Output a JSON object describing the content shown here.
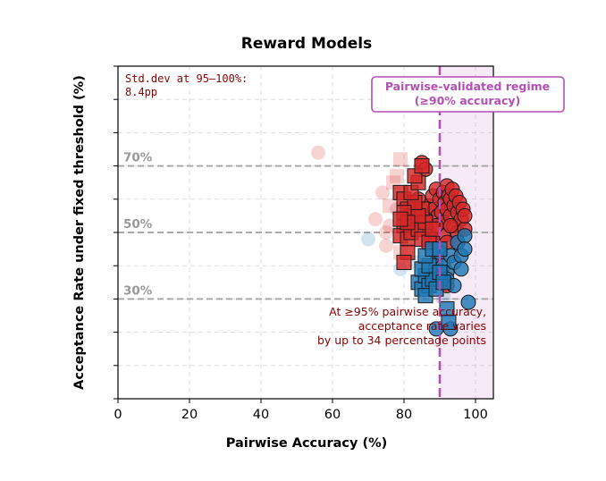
{
  "chart_data": {
    "type": "scatter",
    "title": "Reward Models",
    "xlabel": "Pairwise Accuracy (%)",
    "ylabel": "Acceptance Rate under fixed threshold (%)",
    "xlim": [
      0,
      105
    ],
    "ylim": [
      0,
      100
    ],
    "xticks": [
      0,
      20,
      40,
      60,
      80,
      100
    ],
    "xtick_labels": [
      "0",
      "20",
      "40",
      "60",
      "80",
      "100"
    ],
    "yticks": [
      0,
      10,
      20,
      30,
      40,
      50,
      60,
      70,
      80,
      90,
      100
    ],
    "grid": true,
    "reference_lines": [
      {
        "value": 70,
        "label": "70%"
      },
      {
        "value": 50,
        "label": "50%"
      },
      {
        "value": 30,
        "label": "30%"
      }
    ],
    "threshold_x": 90,
    "region": {
      "x0": 90,
      "x1": 105,
      "label_line1": "Pairwise-validated regime",
      "label_line2": "(≥90% accuracy)"
    },
    "stat_text_line1": "Std.dev at 95–100%:",
    "stat_text_line2": "8.4pp",
    "annotation_line1": "At ≥95% pairwise accuracy,",
    "annotation_line2": "acceptance rate varies",
    "annotation_line3": "by up to 34 percentage points",
    "colors": {
      "red": "#d62728",
      "blue": "#1f77b4",
      "purple": "#b44fb4",
      "annotation": "#8b0000",
      "refline": "#aaaaaa",
      "reflabel": "#999999"
    },
    "series": [
      {
        "name": "red-circles",
        "color": "#d62728",
        "marker": "circle",
        "points": [
          [
            87,
            58
          ],
          [
            88,
            61
          ],
          [
            88.5,
            57
          ],
          [
            89,
            63
          ],
          [
            89.5,
            55
          ],
          [
            90,
            60
          ],
          [
            90.5,
            56
          ],
          [
            91,
            62
          ],
          [
            91,
            53
          ],
          [
            91.5,
            59
          ],
          [
            92,
            64
          ],
          [
            92,
            57
          ],
          [
            92.5,
            61
          ],
          [
            93,
            55
          ],
          [
            93,
            60
          ],
          [
            93.5,
            63
          ],
          [
            94,
            58
          ],
          [
            94,
            52
          ],
          [
            94.5,
            61
          ],
          [
            95,
            56
          ],
          [
            95,
            50
          ],
          [
            95.5,
            59
          ],
          [
            96,
            54
          ],
          [
            96.5,
            57
          ],
          [
            97,
            51
          ],
          [
            97,
            55
          ],
          [
            91,
            49
          ],
          [
            92,
            47
          ],
          [
            93,
            52
          ],
          [
            95,
            47
          ],
          [
            85,
            71
          ],
          [
            86,
            69
          ],
          [
            84,
            60
          ],
          [
            83,
            56
          ],
          [
            86,
            54
          ],
          [
            87,
            50
          ],
          [
            89,
            52
          ],
          [
            88,
            48
          ],
          [
            92,
            34
          ]
        ],
        "faint_points": [
          [
            56,
            74
          ],
          [
            74,
            62
          ],
          [
            72,
            54
          ],
          [
            75,
            50
          ],
          [
            75,
            46
          ],
          [
            76,
            52
          ],
          [
            78,
            57
          ]
        ]
      },
      {
        "name": "blue-circles",
        "color": "#1f77b4",
        "marker": "circle",
        "points": [
          [
            89,
            41
          ],
          [
            90,
            44
          ],
          [
            91,
            40
          ],
          [
            92,
            38
          ],
          [
            93,
            43
          ],
          [
            94,
            41
          ],
          [
            95,
            47
          ],
          [
            96,
            43
          ],
          [
            96,
            39
          ],
          [
            97,
            49
          ],
          [
            97,
            45
          ],
          [
            88,
            37
          ],
          [
            90,
            36
          ],
          [
            92,
            36
          ],
          [
            94,
            34
          ],
          [
            98,
            29
          ],
          [
            93,
            21
          ],
          [
            89,
            21
          ]
        ],
        "faint_points": [
          [
            70,
            48
          ],
          [
            79,
            39
          ]
        ]
      },
      {
        "name": "red-squares",
        "color": "#d62728",
        "marker": "square",
        "points": [
          [
            79,
            62
          ],
          [
            80,
            60
          ],
          [
            81,
            57
          ],
          [
            82,
            55
          ],
          [
            83,
            53
          ],
          [
            80,
            52
          ],
          [
            79,
            49
          ],
          [
            81,
            48
          ],
          [
            82,
            50
          ],
          [
            84,
            51
          ],
          [
            85,
            57
          ],
          [
            86,
            53
          ],
          [
            84,
            55
          ],
          [
            83,
            59
          ],
          [
            82,
            62
          ],
          [
            80,
            56
          ],
          [
            81,
            53
          ],
          [
            79,
            54
          ],
          [
            85,
            48
          ],
          [
            87,
            47
          ],
          [
            88,
            51
          ],
          [
            84,
            65
          ],
          [
            83,
            67
          ],
          [
            85,
            70
          ],
          [
            81,
            44
          ],
          [
            80,
            41
          ]
        ],
        "faint_points": [
          [
            79,
            72
          ],
          [
            78,
            67
          ],
          [
            77,
            65
          ],
          [
            76,
            58
          ],
          [
            79,
            44
          ]
        ]
      },
      {
        "name": "blue-squares",
        "color": "#1f77b4",
        "marker": "square",
        "points": [
          [
            84,
            35
          ],
          [
            85,
            33
          ],
          [
            86,
            37
          ],
          [
            87,
            34
          ],
          [
            88,
            36
          ],
          [
            85,
            39
          ],
          [
            86,
            31
          ],
          [
            87,
            40
          ],
          [
            89,
            33
          ],
          [
            90,
            38
          ],
          [
            91,
            35
          ],
          [
            86,
            43
          ],
          [
            88,
            45
          ],
          [
            90,
            45
          ],
          [
            92,
            27
          ],
          [
            92.5,
            23
          ]
        ],
        "faint_points": [
          [
            84,
            41
          ],
          [
            88,
            40
          ],
          [
            91,
            31
          ],
          [
            90,
            42
          ]
        ]
      }
    ]
  }
}
